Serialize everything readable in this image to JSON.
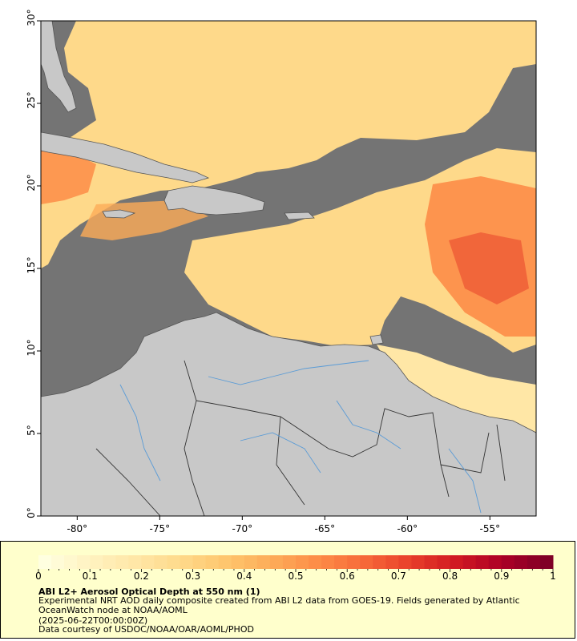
{
  "map": {
    "x_ticks": [
      "-80°",
      "-75°",
      "-70°",
      "-65°",
      "-60°",
      "-55°"
    ],
    "y_ticks": [
      "0°",
      "5°",
      "10°",
      "15°",
      "20°",
      "25°",
      "30°"
    ],
    "x_range": [
      -82.2,
      -52.2
    ],
    "y_range": [
      0,
      30
    ],
    "colors": {
      "no_data": "#747474",
      "land": "#c8c8c8",
      "rivers": "#5a9bd6",
      "borders": "#555555"
    }
  },
  "colorbar": {
    "labels": [
      "0",
      "0.1",
      "0.2",
      "0.3",
      "0.4",
      "0.5",
      "0.6",
      "0.7",
      "0.8",
      "0.9",
      "1"
    ],
    "range": [
      0,
      1
    ],
    "colors": [
      "#ffffe0",
      "#fff2c0",
      "#ffe7a6",
      "#fed98a",
      "#fec56c",
      "#fdab58",
      "#fd8c47",
      "#f76939",
      "#e8402a",
      "#d11a22",
      "#ad0026",
      "#800026"
    ]
  },
  "legend": {
    "title": "ABI L2+ Aerosol Optical Depth at 550 nm (1)",
    "description": "Experimental NRT AOD daily composite created from ABI L2 data from GOES-19. Fields generated by Atlantic OceanWatch node at NOAA/AOML",
    "date": "(2025-06-22T00:00:00Z)",
    "credit": "Data courtesy of USDOC/NOAA/OAR/AOML/PHOD"
  }
}
